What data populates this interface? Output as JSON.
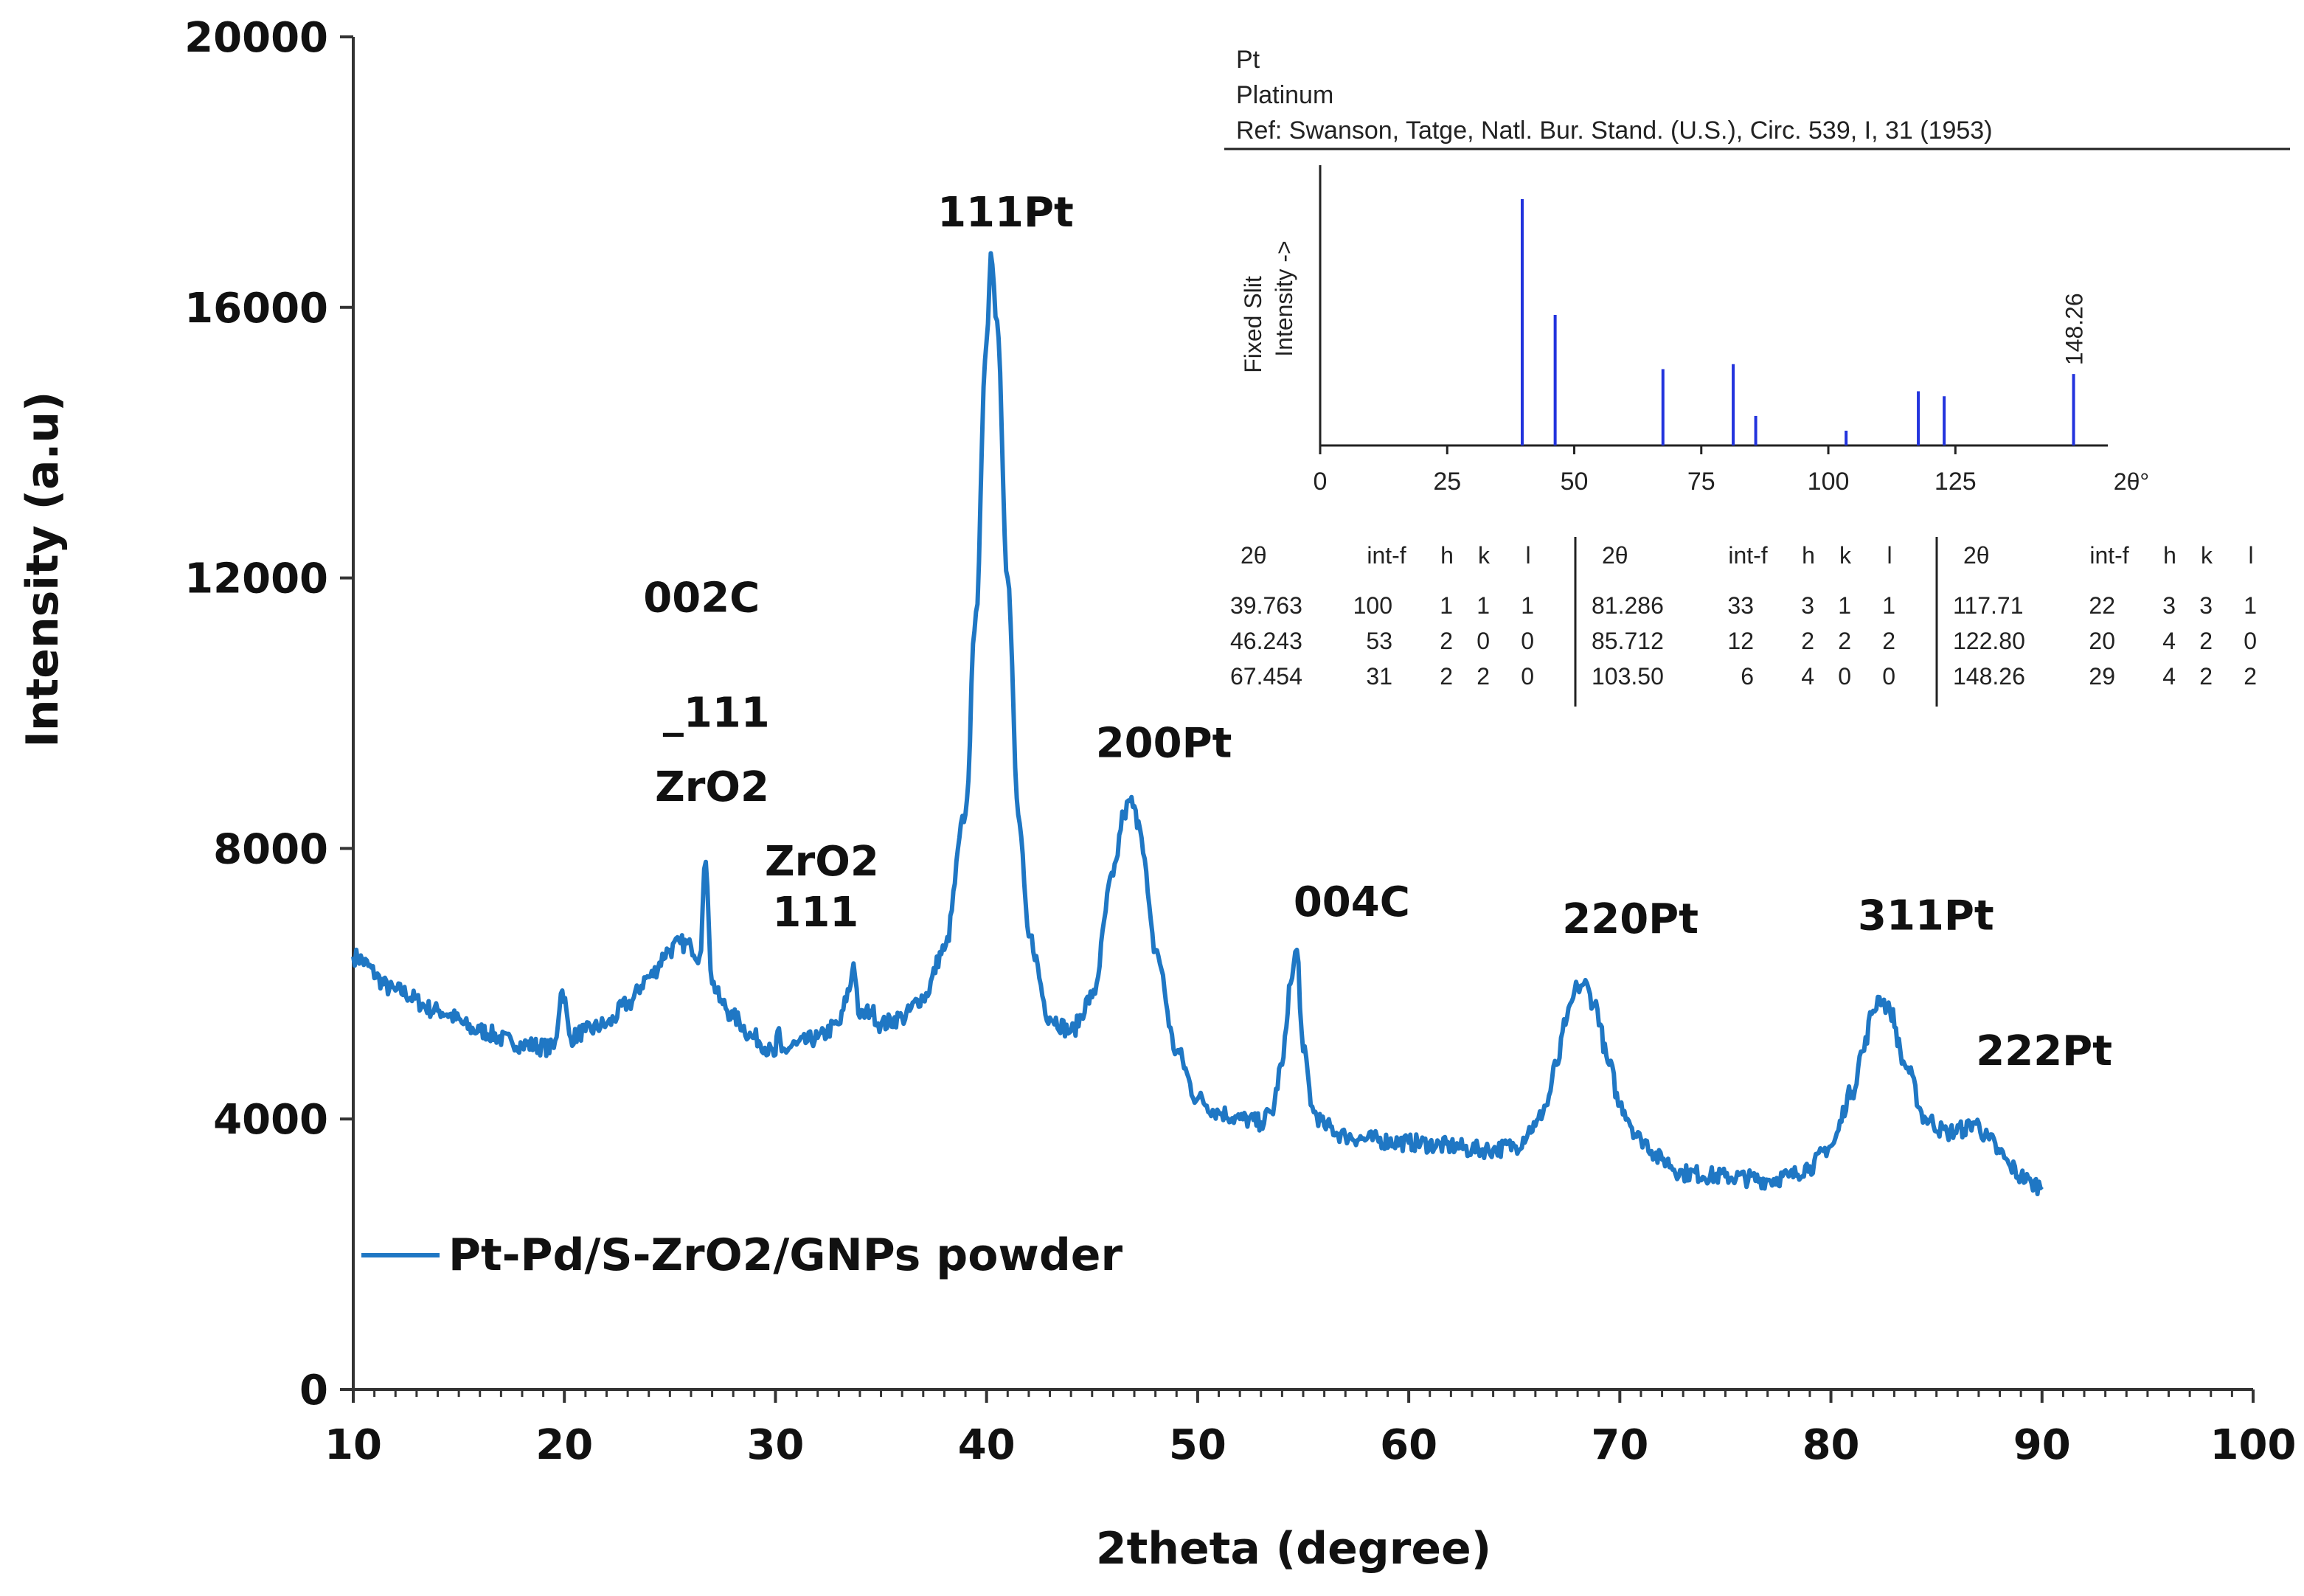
{
  "chart_data": {
    "type": "line",
    "title": "",
    "xlabel": "2theta (degree)",
    "ylabel": "Intensity (a.u)",
    "xlim": [
      10,
      100
    ],
    "ylim": [
      0,
      20000
    ],
    "xticks": [
      "10",
      "20",
      "30",
      "40",
      "50",
      "60",
      "70",
      "80",
      "90",
      "100"
    ],
    "yticks": [
      "0",
      "4000",
      "8000",
      "12000",
      "16000",
      "20000"
    ],
    "grid": false,
    "legend_position": "lower-left",
    "series": [
      {
        "name": "Pt-Pd/S-ZrO2/GNPs powder",
        "color": "#1f77c4",
        "x": [
          10,
          12,
          14,
          16,
          17.5,
          18,
          19.5,
          19.9,
          20.3,
          21,
          22,
          23,
          24,
          25,
          25.5,
          26,
          26.4,
          26.7,
          27,
          27.5,
          28,
          29,
          30,
          30.1,
          30.3,
          31,
          32,
          33,
          33.5,
          33.7,
          34,
          34.5,
          35,
          36,
          37,
          38,
          39,
          39.5,
          40,
          40.2,
          40.5,
          41,
          41.5,
          42,
          43,
          44,
          45,
          46,
          46.5,
          46.8,
          47.2,
          48,
          49,
          50,
          51,
          52,
          53,
          53.5,
          54,
          54.4,
          54.7,
          55,
          55.5,
          56,
          57,
          58,
          60,
          62,
          63,
          64,
          65,
          66,
          66.5,
          67,
          67.5,
          68,
          68.3,
          68.8,
          69.5,
          70,
          71,
          72,
          73,
          75,
          77,
          78,
          79,
          80,
          81,
          81.5,
          82,
          82.3,
          82.8,
          83.5,
          84.5,
          85.5,
          86.3,
          86.8,
          87.5,
          88,
          88.5,
          89,
          89.5,
          90
        ],
        "values": [
          6400,
          5900,
          5600,
          5300,
          5150,
          5100,
          5050,
          5900,
          5200,
          5300,
          5400,
          5700,
          6100,
          6500,
          6600,
          6550,
          6400,
          7800,
          6000,
          5700,
          5500,
          5200,
          4950,
          5300,
          5000,
          5100,
          5200,
          5400,
          5900,
          6300,
          5500,
          5600,
          5400,
          5500,
          5800,
          6500,
          8500,
          11500,
          15500,
          16800,
          15800,
          12000,
          8500,
          6700,
          5500,
          5300,
          5800,
          7600,
          8500,
          8700,
          8400,
          6500,
          5000,
          4300,
          4100,
          4000,
          3950,
          4100,
          4800,
          6000,
          6500,
          5000,
          4100,
          3900,
          3750,
          3700,
          3650,
          3600,
          3550,
          3550,
          3600,
          3900,
          4200,
          4800,
          5500,
          5950,
          6000,
          5700,
          4800,
          4200,
          3700,
          3400,
          3200,
          3150,
          3100,
          3150,
          3300,
          3600,
          4400,
          5000,
          5600,
          5800,
          5600,
          4800,
          4000,
          3800,
          3850,
          3950,
          3700,
          3500,
          3300,
          3150,
          3050,
          3000
        ]
      }
    ],
    "annotations": [
      {
        "text": "002C",
        "x": 26.5,
        "y": 11500
      },
      {
        "text": "_111",
        "x": 27.2,
        "y": 9800
      },
      {
        "text": "ZrO2",
        "x": 27.0,
        "y": 8700
      },
      {
        "text": "ZrO2",
        "x": 32.2,
        "y": 7600
      },
      {
        "text": "111",
        "x": 31.9,
        "y": 6850
      },
      {
        "text": "111Pt",
        "x": 40.9,
        "y": 17200
      },
      {
        "text": "200Pt",
        "x": 48.4,
        "y": 9350
      },
      {
        "text": "004C",
        "x": 57.3,
        "y": 7000
      },
      {
        "text": "220Pt",
        "x": 70.5,
        "y": 6750
      },
      {
        "text": "311Pt",
        "x": 84.5,
        "y": 6800
      },
      {
        "text": "222Pt",
        "x": 90.1,
        "y": 4800
      }
    ]
  },
  "inset": {
    "header": [
      "Pt",
      "Platinum",
      "Ref: Swanson, Tatge, Natl. Bur. Stand. (U.S.), Circ. 539, I, 31 (1953)"
    ],
    "ylabel": [
      "Fixed Slit",
      "Intensity ->"
    ],
    "xticks": [
      "0",
      "25",
      "50",
      "75",
      "100",
      "125"
    ],
    "xtick_values": [
      0,
      25,
      50,
      75,
      100,
      125
    ],
    "xunit": "2θ°",
    "xlim": [
      0,
      155
    ],
    "peak_label": "148.26",
    "stick_color": "#2233dd",
    "peaks": [
      {
        "x": 39.763,
        "i": 100
      },
      {
        "x": 46.243,
        "i": 53
      },
      {
        "x": 67.454,
        "i": 31
      },
      {
        "x": 81.286,
        "i": 33
      },
      {
        "x": 85.712,
        "i": 12
      },
      {
        "x": 103.5,
        "i": 6
      },
      {
        "x": 117.71,
        "i": 22
      },
      {
        "x": 122.8,
        "i": 20
      },
      {
        "x": 148.26,
        "i": 29
      }
    ],
    "table_headers": [
      "2θ",
      "int-f",
      "h",
      "k",
      "l"
    ],
    "table": [
      [
        [
          "39.763",
          "100",
          "1",
          "1",
          "1"
        ],
        [
          "46.243",
          "53",
          "2",
          "0",
          "0"
        ],
        [
          "67.454",
          "31",
          "2",
          "2",
          "0"
        ]
      ],
      [
        [
          "81.286",
          "33",
          "3",
          "1",
          "1"
        ],
        [
          "85.712",
          "12",
          "2",
          "2",
          "2"
        ],
        [
          "103.50",
          "6",
          "4",
          "0",
          "0"
        ]
      ],
      [
        [
          "117.71",
          "22",
          "3",
          "3",
          "1"
        ],
        [
          "122.80",
          "20",
          "4",
          "2",
          "0"
        ],
        [
          "148.26",
          "29",
          "4",
          "2",
          "2"
        ]
      ]
    ]
  }
}
